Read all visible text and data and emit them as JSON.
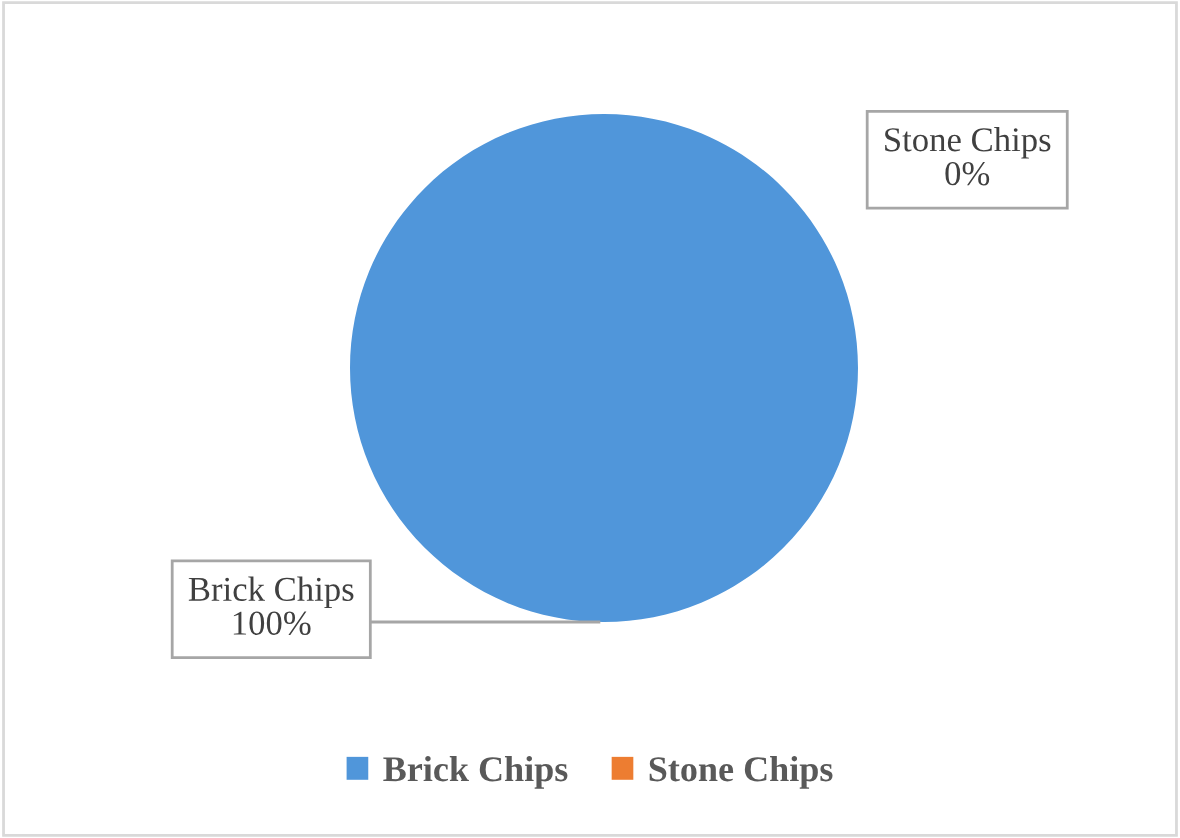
{
  "chart_data": {
    "type": "pie",
    "categories": [
      "Brick Chips",
      "Stone Chips"
    ],
    "values": [
      100,
      0
    ],
    "colors": [
      "#5096da",
      "#ed7d31"
    ],
    "value_labels": [
      "100%",
      "0%"
    ],
    "legend": "bottom"
  }
}
